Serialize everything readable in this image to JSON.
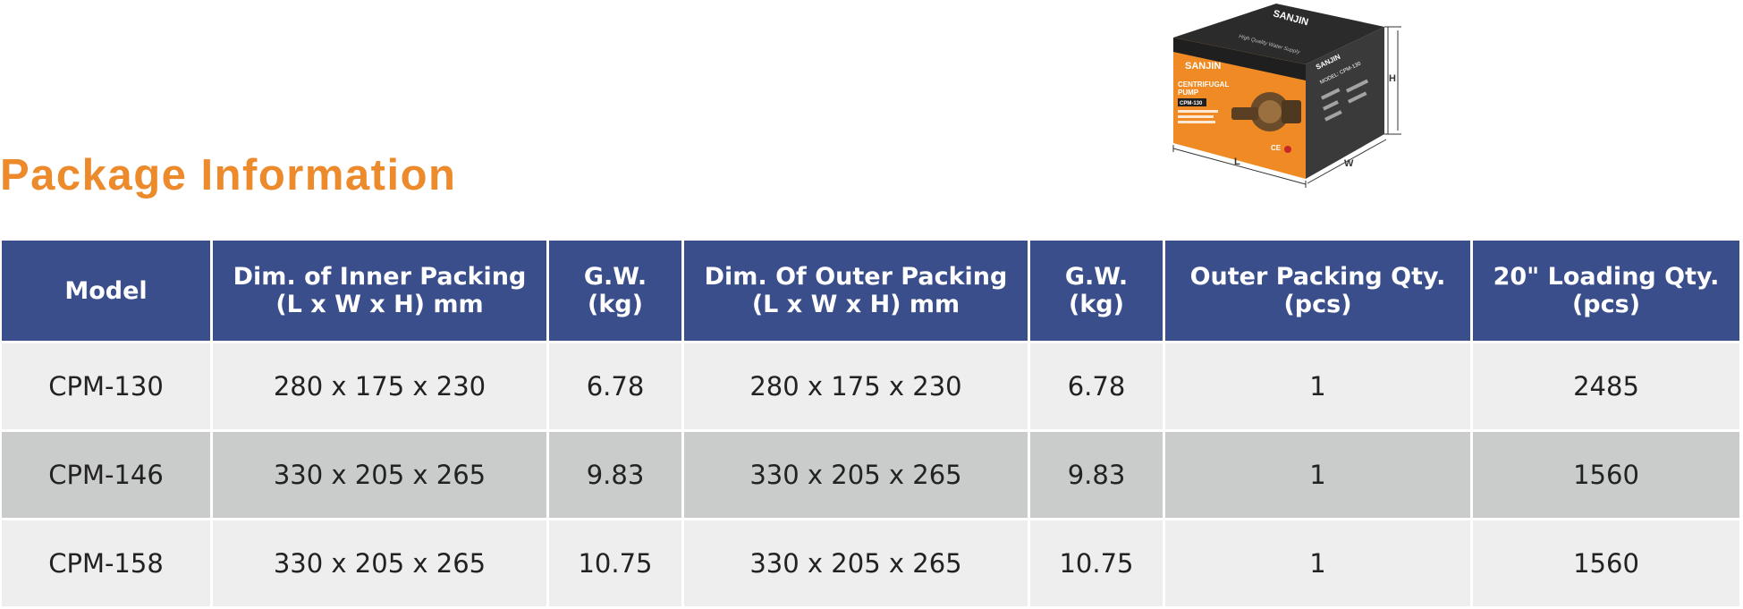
{
  "title": "Package Information",
  "colors": {
    "title": "#ec8a2c",
    "header_bg": "#3a4e8b",
    "row_light": "#eeeeee",
    "row_dark": "#cacbcb",
    "box_orange": "#f08a24",
    "box_dark": "#2a2a2a"
  },
  "box_image": {
    "brand": "SANJIN",
    "product_line1": "CENTRIFUGAL",
    "product_line2": "PUMP",
    "model_badge": "CPM-130",
    "top_slogan": "High Quality Water Supply",
    "side_model": "MODEL: CPM-130",
    "dim_labels": {
      "length": "L",
      "width": "W",
      "height": "H"
    }
  },
  "table": {
    "headers": [
      {
        "line1": "Model",
        "line2": ""
      },
      {
        "line1": "Dim. of Inner Packing",
        "line2": "(L x W x H) mm"
      },
      {
        "line1": "G.W.",
        "line2": "(kg)"
      },
      {
        "line1": "Dim. Of Outer Packing",
        "line2": "(L x W x H) mm"
      },
      {
        "line1": "G.W.",
        "line2": "(kg)"
      },
      {
        "line1": "Outer Packing Qty.",
        "line2": "(pcs)"
      },
      {
        "line1": "20\" Loading Qty.",
        "line2": "(pcs)"
      }
    ],
    "rows": [
      [
        "CPM-130",
        "280 x 175 x 230",
        "6.78",
        "280 x 175 x 230",
        "6.78",
        "1",
        "2485"
      ],
      [
        "CPM-146",
        "330 x 205 x 265",
        "9.83",
        "330 x 205 x 265",
        "9.83",
        "1",
        "1560"
      ],
      [
        "CPM-158",
        "330 x 205 x 265",
        "10.75",
        "330 x 205 x 265",
        "10.75",
        "1",
        "1560"
      ]
    ]
  }
}
